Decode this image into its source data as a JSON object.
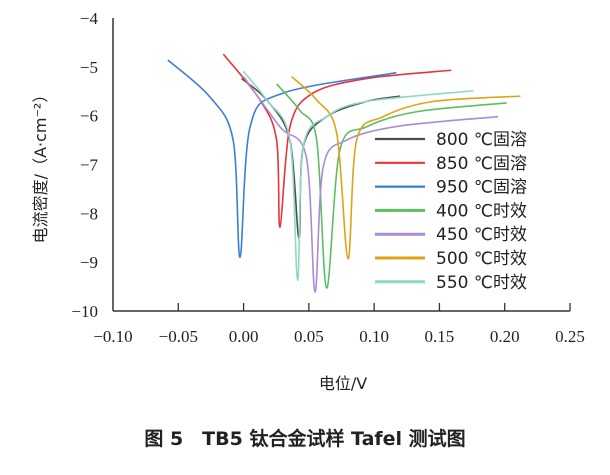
{
  "chart_data": {
    "type": "line",
    "title": "",
    "xlabel": "电位/V",
    "ylabel": "电流密度/（A·cm⁻²）",
    "xlim": [
      -0.1,
      0.25
    ],
    "ylim": [
      -10,
      -4
    ],
    "xticks": [
      "−0.10",
      "−0.05",
      "0.00",
      "0.05",
      "0.10",
      "0.15",
      "0.20",
      "0.25"
    ],
    "xtick_values": [
      -0.1,
      -0.05,
      0,
      0.05,
      0.1,
      0.15,
      0.2,
      0.25
    ],
    "yticks": [
      "−4",
      "−5",
      "−6",
      "−7",
      "−8",
      "−9",
      "−10"
    ],
    "ytick_values": [
      -4,
      -5,
      -6,
      -7,
      -8,
      -9,
      -10
    ],
    "grid": false,
    "legend_placement": "right",
    "series": [
      {
        "name": "800 ℃固溶",
        "color": "#4d4d4d",
        "points": [
          [
            -0.0015,
            -5.24
          ],
          [
            0.0177,
            -5.68
          ],
          [
            0.0355,
            -6.5
          ],
          [
            0.0424,
            -8.51
          ],
          [
            0.0457,
            -6.64
          ],
          [
            0.0636,
            -6.02
          ],
          [
            0.094,
            -5.71
          ],
          [
            0.12,
            -5.6
          ]
        ]
      },
      {
        "name": "850 ℃固溶",
        "color": "#e8323c",
        "points": [
          [
            -0.0155,
            -4.74
          ],
          [
            0.0126,
            -5.68
          ],
          [
            0.0253,
            -6.5
          ],
          [
            0.0279,
            -8.28
          ],
          [
            0.0355,
            -6.23
          ],
          [
            0.053,
            -5.54
          ],
          [
            0.094,
            -5.24
          ],
          [
            0.159,
            -5.07
          ]
        ]
      },
      {
        "name": "950 ℃固溶",
        "color": "#3b7fd2",
        "points": [
          [
            -0.058,
            -4.86
          ],
          [
            -0.026,
            -5.61
          ],
          [
            -0.008,
            -6.5
          ],
          [
            -0.0027,
            -8.9
          ],
          [
            0.005,
            -6.23
          ],
          [
            0.03,
            -5.54
          ],
          [
            0.117,
            -5.12
          ]
        ]
      },
      {
        "name": "400 ℃时效",
        "color": "#5cbf62",
        "points": [
          [
            0.0253,
            -5.35
          ],
          [
            0.043,
            -5.89
          ],
          [
            0.056,
            -6.5
          ],
          [
            0.0636,
            -9.53
          ],
          [
            0.0738,
            -6.7
          ],
          [
            0.094,
            -6.23
          ],
          [
            0.1325,
            -5.92
          ],
          [
            0.2015,
            -5.74
          ]
        ]
      },
      {
        "name": "450 ℃时效",
        "color": "#a98bd6",
        "points": [
          [
            0.0,
            -5.2
          ],
          [
            0.0279,
            -6.23
          ],
          [
            0.048,
            -6.84
          ],
          [
            0.0547,
            -9.61
          ],
          [
            0.061,
            -7.05
          ],
          [
            0.079,
            -6.5
          ],
          [
            0.12,
            -6.21
          ],
          [
            0.195,
            -6.02
          ]
        ]
      },
      {
        "name": "500 ℃时效",
        "color": "#e0a21a",
        "points": [
          [
            0.0368,
            -5.2
          ],
          [
            0.056,
            -5.68
          ],
          [
            0.0713,
            -6.36
          ],
          [
            0.08,
            -8.93
          ],
          [
            0.0866,
            -6.5
          ],
          [
            0.107,
            -6.02
          ],
          [
            0.145,
            -5.71
          ],
          [
            0.212,
            -5.6
          ]
        ]
      },
      {
        "name": "550 ℃时效",
        "color": "#8fd8c6",
        "points": [
          [
            -0.0002,
            -5.09
          ],
          [
            0.0177,
            -5.68
          ],
          [
            0.0355,
            -6.5
          ],
          [
            0.0414,
            -9.37
          ],
          [
            0.0457,
            -6.64
          ],
          [
            0.0636,
            -6.02
          ],
          [
            0.094,
            -5.71
          ],
          [
            0.176,
            -5.49
          ]
        ]
      }
    ]
  },
  "caption": "图 5　TB5 钛合金试样 Tafel 测试图"
}
